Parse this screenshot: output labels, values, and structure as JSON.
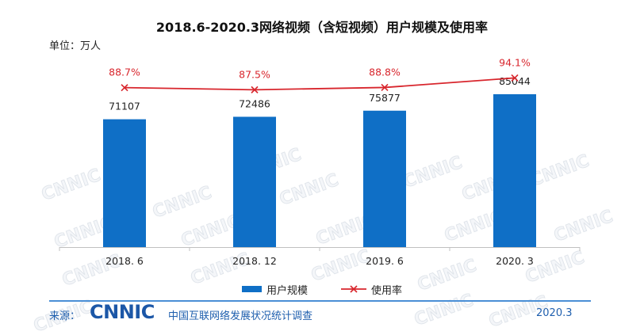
{
  "chart_data": {
    "type": "bar",
    "title": "2018.6-2020.3网络视频（含短视频）用户规模及使用率",
    "unit_label": "单位：万人",
    "categories": [
      "2018. 6",
      "2018. 12",
      "2019. 6",
      "2020. 3"
    ],
    "series": [
      {
        "name": "用户规模",
        "type": "bar",
        "values": [
          71107,
          72486,
          75877,
          85044
        ],
        "data_labels": [
          "71107",
          "72486",
          "75877",
          "85044"
        ],
        "color": "#0f6fc6"
      },
      {
        "name": "使用率",
        "type": "line",
        "marker": "x",
        "values": [
          88.7,
          87.5,
          88.8,
          94.1
        ],
        "data_labels": [
          "88.7%",
          "87.5%",
          "88.8%",
          "94.1%"
        ],
        "color": "#d8262d"
      }
    ],
    "xlabel": "",
    "ylabel": "",
    "ylim": [
      0,
      100000
    ],
    "y2lim": [
      0,
      100
    ],
    "grid": false,
    "legend": "bottom-center"
  },
  "footer": {
    "source_label": "来源：",
    "logo_text": "CNNIC",
    "survey_name": "中国互联网络发展状况统计调查",
    "date": "2020.3"
  },
  "watermark_text": "CNNIC",
  "colors": {
    "footer_text": "#1f5fae",
    "footer_rule": "#4a8fd6",
    "logo": "#1c57a7",
    "axis": "#c0c0c0"
  }
}
